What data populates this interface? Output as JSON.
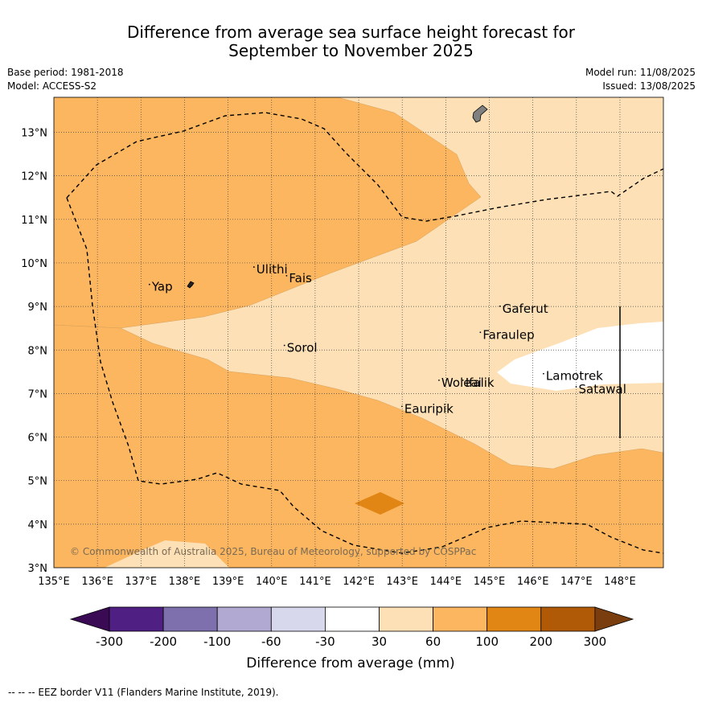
{
  "title": {
    "line1": "Difference from average sea surface height forecast for",
    "line2": "September to November 2025"
  },
  "meta": {
    "base_period": "Base period: 1981-2018",
    "model": "Model: ACCESS-S2",
    "model_run": "Model run: 11/08/2025",
    "issued": "Issued: 13/08/2025"
  },
  "map": {
    "lon_range": [
      135,
      149
    ],
    "lat_range": [
      3,
      13.8
    ],
    "lon_ticks": [
      "135°E",
      "136°E",
      "137°E",
      "138°E",
      "139°E",
      "140°E",
      "141°E",
      "142°E",
      "143°E",
      "144°E",
      "145°E",
      "146°E",
      "147°E",
      "148°E"
    ],
    "lat_ticks": [
      "3°N",
      "4°N",
      "5°N",
      "6°N",
      "7°N",
      "8°N",
      "9°N",
      "10°N",
      "11°N",
      "12°N",
      "13°N"
    ],
    "copyright": "© Commonwealth of Australia 2025, Bureau of Meteorology, supported by COSPPac",
    "places": [
      {
        "name": "Yap",
        "lon": 137.25,
        "lat": 9.45
      },
      {
        "name": "Ulithi",
        "lon": 139.65,
        "lat": 9.85
      },
      {
        "name": "Fais",
        "lon": 140.4,
        "lat": 9.65
      },
      {
        "name": "Gaferut",
        "lon": 145.3,
        "lat": 8.95
      },
      {
        "name": "Faraulep",
        "lon": 144.85,
        "lat": 8.35
      },
      {
        "name": "Sorol",
        "lon": 140.35,
        "lat": 8.05
      },
      {
        "name": "Woleai",
        "lon": 143.9,
        "lat": 7.25
      },
      {
        "name": "Ifalik",
        "lon": 144.45,
        "lat": 7.25
      },
      {
        "name": "Lamotrek",
        "lon": 146.3,
        "lat": 7.4
      },
      {
        "name": "Satawal",
        "lon": 147.05,
        "lat": 7.1
      },
      {
        "name": "Eauripik",
        "lon": 143.05,
        "lat": 6.65
      }
    ]
  },
  "legend": {
    "ticks": [
      "-300",
      "-200",
      "-100",
      "-60",
      "-30",
      "30",
      "60",
      "100",
      "200",
      "300"
    ],
    "label": "Difference from average (mm)",
    "colors": {
      "below": "#3a0a55",
      "bins": [
        "#4f1f83",
        "#7e70ad",
        "#b2a9d2",
        "#d8d8ec",
        "#ffffff",
        "#fde0b5",
        "#fbb65f",
        "#e18514",
        "#b05a08"
      ],
      "above": "#7a3e0e"
    }
  },
  "footer": "-- -- -- EEZ border V11 (Flanders Marine Institute, 2019)."
}
